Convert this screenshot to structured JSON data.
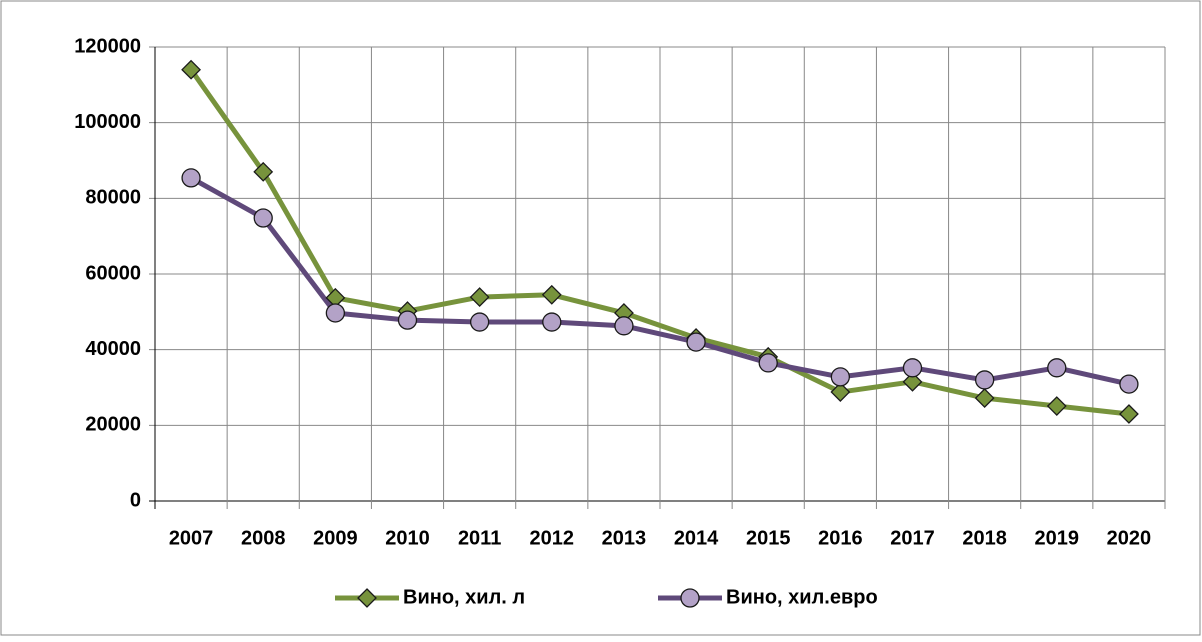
{
  "chart_data": {
    "type": "line",
    "categories": [
      "2007",
      "2008",
      "2009",
      "2010",
      "2011",
      "2012",
      "2013",
      "2014",
      "2015",
      "2016",
      "2017",
      "2018",
      "2019",
      "2020"
    ],
    "series": [
      {
        "name": "Вино, хил. л",
        "color": "#77933c",
        "marker": "diamond",
        "values": [
          114000,
          87000,
          53700,
          50200,
          53900,
          54500,
          49700,
          43100,
          38100,
          28800,
          31500,
          27200,
          25100,
          23000
        ]
      },
      {
        "name": "Вино, хил.евро",
        "color": "#5f497a",
        "marker": "circle",
        "values": [
          85400,
          74800,
          49700,
          47800,
          47300,
          47300,
          46300,
          42000,
          36500,
          32800,
          35200,
          32000,
          35200,
          30900
        ]
      }
    ],
    "ylim": [
      0,
      120000
    ],
    "yticks": [
      0,
      20000,
      40000,
      60000,
      80000,
      100000,
      120000
    ],
    "grid": true,
    "legend": "bottom"
  }
}
